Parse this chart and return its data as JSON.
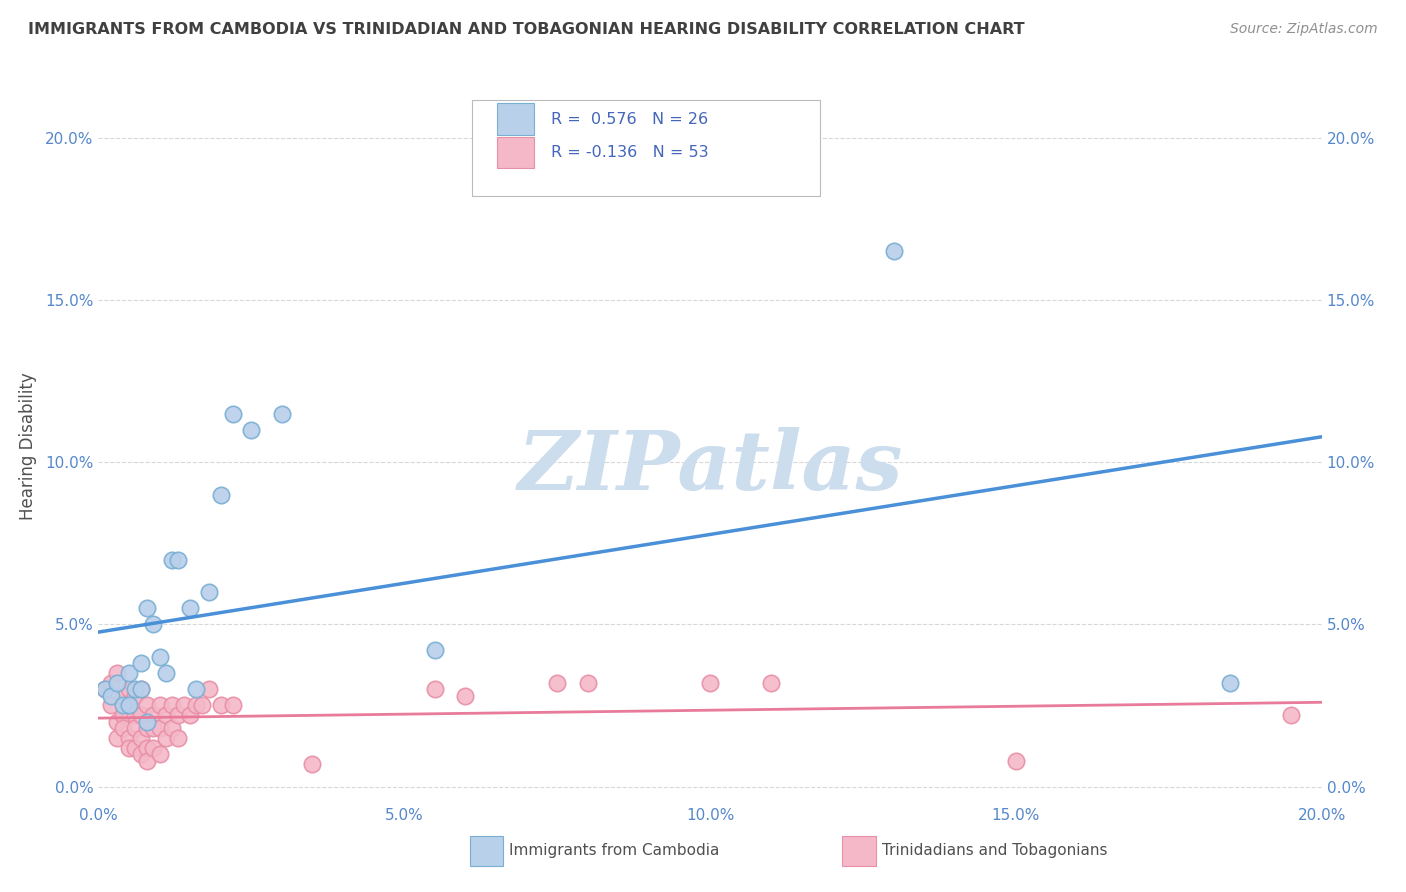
{
  "title": "IMMIGRANTS FROM CAMBODIA VS TRINIDADIAN AND TOBAGONIAN HEARING DISABILITY CORRELATION CHART",
  "source": "Source: ZipAtlas.com",
  "ylabel_label": "Hearing Disability",
  "xlim": [
    0.0,
    0.2
  ],
  "ylim": [
    -0.005,
    0.215
  ],
  "blue_scatter": [
    [
      0.001,
      0.03
    ],
    [
      0.002,
      0.028
    ],
    [
      0.003,
      0.032
    ],
    [
      0.004,
      0.025
    ],
    [
      0.005,
      0.035
    ],
    [
      0.005,
      0.025
    ],
    [
      0.006,
      0.03
    ],
    [
      0.007,
      0.038
    ],
    [
      0.007,
      0.03
    ],
    [
      0.008,
      0.02
    ],
    [
      0.008,
      0.055
    ],
    [
      0.009,
      0.05
    ],
    [
      0.01,
      0.04
    ],
    [
      0.011,
      0.035
    ],
    [
      0.012,
      0.07
    ],
    [
      0.013,
      0.07
    ],
    [
      0.015,
      0.055
    ],
    [
      0.016,
      0.03
    ],
    [
      0.018,
      0.06
    ],
    [
      0.02,
      0.09
    ],
    [
      0.022,
      0.115
    ],
    [
      0.025,
      0.11
    ],
    [
      0.03,
      0.115
    ],
    [
      0.055,
      0.042
    ],
    [
      0.13,
      0.165
    ],
    [
      0.185,
      0.032
    ]
  ],
  "pink_scatter": [
    [
      0.001,
      0.03
    ],
    [
      0.002,
      0.032
    ],
    [
      0.002,
      0.025
    ],
    [
      0.003,
      0.035
    ],
    [
      0.003,
      0.02
    ],
    [
      0.003,
      0.015
    ],
    [
      0.004,
      0.028
    ],
    [
      0.004,
      0.022
    ],
    [
      0.004,
      0.018
    ],
    [
      0.005,
      0.03
    ],
    [
      0.005,
      0.025
    ],
    [
      0.005,
      0.015
    ],
    [
      0.005,
      0.012
    ],
    [
      0.006,
      0.028
    ],
    [
      0.006,
      0.022
    ],
    [
      0.006,
      0.018
    ],
    [
      0.006,
      0.012
    ],
    [
      0.007,
      0.03
    ],
    [
      0.007,
      0.022
    ],
    [
      0.007,
      0.015
    ],
    [
      0.007,
      0.01
    ],
    [
      0.008,
      0.025
    ],
    [
      0.008,
      0.018
    ],
    [
      0.008,
      0.012
    ],
    [
      0.008,
      0.008
    ],
    [
      0.009,
      0.022
    ],
    [
      0.009,
      0.018
    ],
    [
      0.009,
      0.012
    ],
    [
      0.01,
      0.025
    ],
    [
      0.01,
      0.018
    ],
    [
      0.01,
      0.01
    ],
    [
      0.011,
      0.022
    ],
    [
      0.011,
      0.015
    ],
    [
      0.012,
      0.025
    ],
    [
      0.012,
      0.018
    ],
    [
      0.013,
      0.022
    ],
    [
      0.013,
      0.015
    ],
    [
      0.014,
      0.025
    ],
    [
      0.015,
      0.022
    ],
    [
      0.016,
      0.025
    ],
    [
      0.017,
      0.025
    ],
    [
      0.018,
      0.03
    ],
    [
      0.02,
      0.025
    ],
    [
      0.022,
      0.025
    ],
    [
      0.035,
      0.007
    ],
    [
      0.055,
      0.03
    ],
    [
      0.06,
      0.028
    ],
    [
      0.075,
      0.032
    ],
    [
      0.08,
      0.032
    ],
    [
      0.1,
      0.032
    ],
    [
      0.11,
      0.032
    ],
    [
      0.15,
      0.008
    ],
    [
      0.195,
      0.022
    ]
  ],
  "blue_line_color": "#4a90d9",
  "pink_line_color": "#e87a9a",
  "blue_scatter_facecolor": "#b8d0ea",
  "pink_scatter_facecolor": "#f4b8c8",
  "blue_scatter_edgecolor": "#7aafd4",
  "pink_scatter_edgecolor": "#e890a8",
  "grid_color": "#d8d8d8",
  "background_color": "#ffffff",
  "title_color": "#404040",
  "source_color": "#909090",
  "axis_tick_color": "#5588cc",
  "ylabel_color": "#505050",
  "legend_text_color": "#4466bb",
  "legend_label_color": "#505050",
  "watermark_text": "ZIPatlas",
  "watermark_color": "#ccdded",
  "xtick_vals": [
    0.0,
    0.05,
    0.1,
    0.15,
    0.2
  ],
  "ytick_vals": [
    0.0,
    0.05,
    0.1,
    0.15,
    0.2
  ]
}
